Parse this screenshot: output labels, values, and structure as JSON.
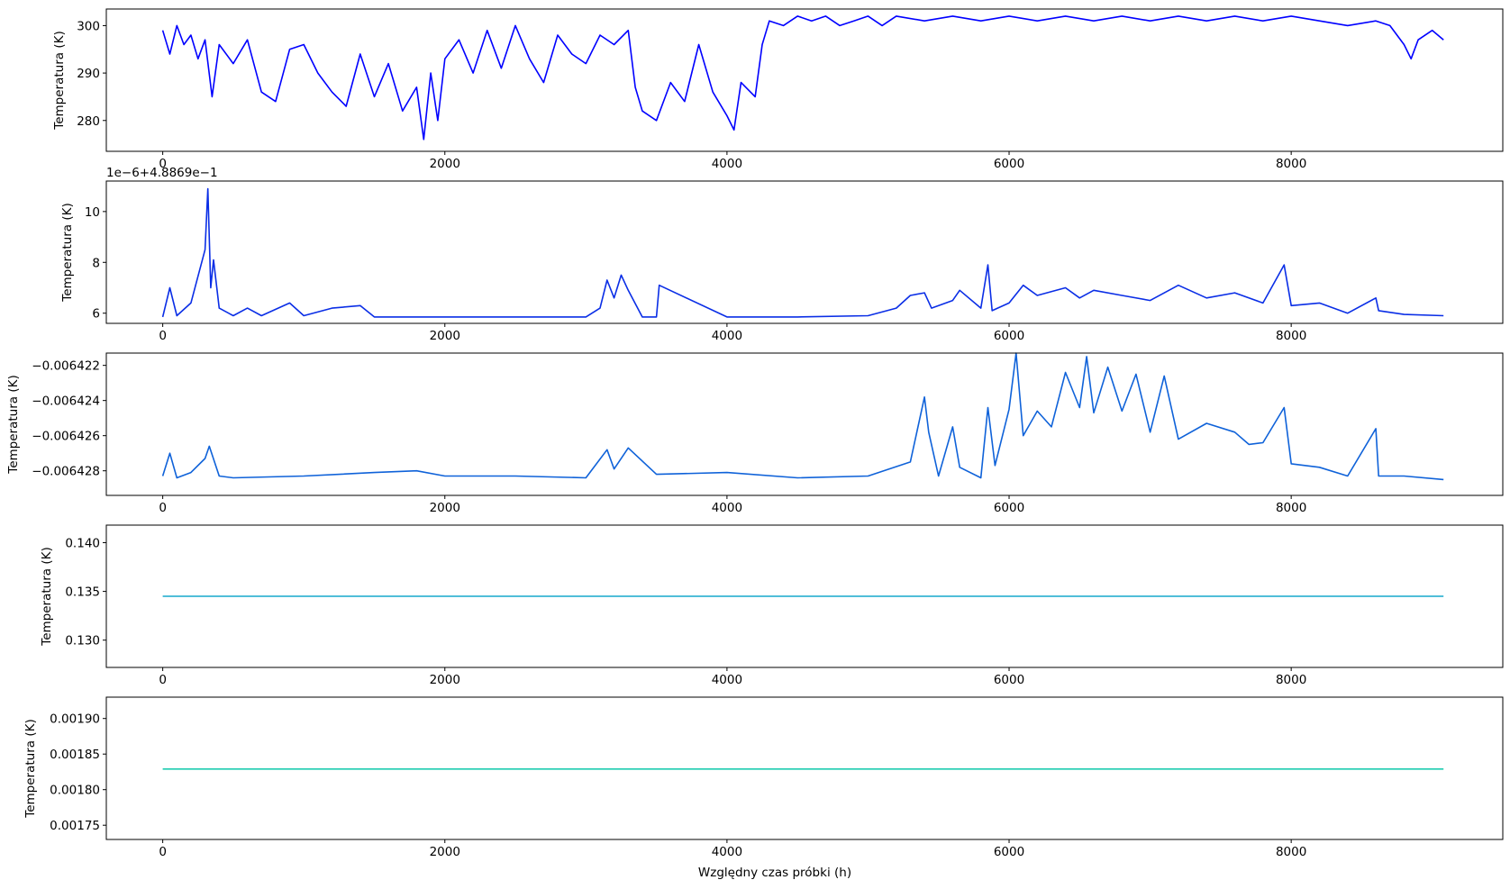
{
  "chart_data": [
    {
      "type": "line",
      "ylabel": "Temperatura (K)",
      "offset_text": "",
      "xlim": [
        -400,
        9500
      ],
      "ylim": [
        273.5,
        303.5
      ],
      "xticks": [
        0,
        2000,
        4000,
        6000,
        8000
      ],
      "yticks": [
        280,
        290,
        300
      ],
      "ytick_labels": [
        "280",
        "290",
        "300"
      ],
      "color": "#0000ff",
      "series": [
        {
          "x": [
            0,
            50,
            100,
            150,
            200,
            250,
            300,
            350,
            400,
            500,
            600,
            700,
            800,
            900,
            1000,
            1100,
            1200,
            1300,
            1400,
            1500,
            1600,
            1700,
            1800,
            1850,
            1900,
            1950,
            2000,
            2100,
            2200,
            2300,
            2400,
            2500,
            2600,
            2700,
            2800,
            2900,
            3000,
            3100,
            3200,
            3300,
            3350,
            3400,
            3500,
            3600,
            3700,
            3800,
            3900,
            4000,
            4050,
            4100,
            4200,
            4250,
            4300,
            4400,
            4500,
            4600,
            4700,
            4800,
            4900,
            5000,
            5100,
            5200,
            5400,
            5600,
            5800,
            6000,
            6200,
            6400,
            6600,
            6800,
            7000,
            7200,
            7400,
            7600,
            7800,
            8000,
            8200,
            8400,
            8600,
            8700,
            8800,
            8850,
            8900,
            9000,
            9080
          ],
          "y": [
            299,
            294,
            300,
            296,
            298,
            293,
            297,
            285,
            296,
            292,
            297,
            286,
            284,
            295,
            296,
            290,
            286,
            283,
            294,
            285,
            292,
            282,
            287,
            276,
            290,
            280,
            293,
            297,
            290,
            299,
            291,
            300,
            293,
            288,
            298,
            294,
            292,
            298,
            296,
            299,
            287,
            282,
            280,
            288,
            284,
            296,
            286,
            281,
            278,
            288,
            285,
            296,
            301,
            300,
            302,
            301,
            302,
            300,
            301,
            302,
            300,
            302,
            301,
            302,
            301,
            302,
            301,
            302,
            301,
            302,
            301,
            302,
            301,
            302,
            301,
            302,
            301,
            300,
            301,
            300,
            296,
            293,
            297,
            299,
            297
          ]
        }
      ]
    },
    {
      "type": "line",
      "ylabel": "Temperatura (K)",
      "offset_text": "1e−6+4.8869e−1",
      "xlim": [
        -400,
        9500
      ],
      "ylim": [
        5.6,
        11.2
      ],
      "xticks": [
        0,
        2000,
        4000,
        6000,
        8000
      ],
      "yticks": [
        6,
        8,
        10
      ],
      "ytick_labels": [
        "6",
        "8",
        "10"
      ],
      "color": "#0a2ee6",
      "series": [
        {
          "x": [
            0,
            50,
            100,
            200,
            300,
            320,
            340,
            360,
            400,
            500,
            600,
            700,
            900,
            1000,
            1200,
            1400,
            1500,
            2000,
            2500,
            3000,
            3100,
            3150,
            3200,
            3250,
            3300,
            3400,
            3500,
            3520,
            4000,
            4500,
            5000,
            5200,
            5300,
            5400,
            5450,
            5600,
            5650,
            5800,
            5850,
            5880,
            6000,
            6100,
            6200,
            6400,
            6500,
            6600,
            6800,
            7000,
            7200,
            7400,
            7600,
            7800,
            7950,
            8000,
            8200,
            8400,
            8600,
            8620,
            8800,
            9080
          ],
          "y": [
            5.85,
            7.0,
            5.9,
            6.4,
            8.5,
            10.9,
            7.0,
            8.1,
            6.2,
            5.9,
            6.2,
            5.9,
            6.4,
            5.9,
            6.2,
            6.3,
            5.85,
            5.85,
            5.85,
            5.85,
            6.2,
            7.3,
            6.6,
            7.5,
            6.9,
            5.85,
            5.85,
            7.1,
            5.85,
            5.85,
            5.9,
            6.2,
            6.7,
            6.8,
            6.2,
            6.5,
            6.9,
            6.2,
            7.9,
            6.1,
            6.4,
            7.1,
            6.7,
            7.0,
            6.6,
            6.9,
            6.7,
            6.5,
            7.1,
            6.6,
            6.8,
            6.4,
            7.9,
            6.3,
            6.4,
            6.0,
            6.6,
            6.1,
            5.95,
            5.9
          ]
        }
      ]
    },
    {
      "type": "line",
      "ylabel": "Temperatura (K)",
      "offset_text": "",
      "xlim": [
        -400,
        9500
      ],
      "ylim": [
        -0.0064294,
        -0.0064213
      ],
      "xticks": [
        0,
        2000,
        4000,
        6000,
        8000
      ],
      "yticks": [
        -0.006422,
        -0.006424,
        -0.006426,
        -0.006428
      ],
      "ytick_labels": [
        "−0.006422",
        "−0.006424",
        "−0.006426",
        "−0.006428"
      ],
      "color": "#0f62d9",
      "series": [
        {
          "x": [
            0,
            50,
            100,
            200,
            300,
            330,
            400,
            500,
            1000,
            1500,
            1800,
            2000,
            2500,
            3000,
            3150,
            3200,
            3300,
            3500,
            4000,
            4500,
            5000,
            5300,
            5400,
            5430,
            5500,
            5600,
            5650,
            5800,
            5850,
            5900,
            6000,
            6050,
            6100,
            6200,
            6300,
            6400,
            6500,
            6550,
            6600,
            6700,
            6800,
            6900,
            7000,
            7100,
            7200,
            7400,
            7600,
            7700,
            7800,
            7950,
            8000,
            8200,
            8400,
            8600,
            8620,
            8800,
            9080
          ],
          "y": [
            -0.0064283,
            -0.006427,
            -0.0064284,
            -0.0064281,
            -0.0064273,
            -0.0064266,
            -0.0064283,
            -0.0064284,
            -0.0064283,
            -0.0064281,
            -0.006428,
            -0.0064283,
            -0.0064283,
            -0.0064284,
            -0.0064268,
            -0.0064279,
            -0.0064267,
            -0.0064282,
            -0.0064281,
            -0.0064284,
            -0.0064283,
            -0.0064275,
            -0.0064238,
            -0.0064258,
            -0.0064283,
            -0.0064255,
            -0.0064278,
            -0.0064284,
            -0.0064244,
            -0.0064277,
            -0.0064245,
            -0.0064213,
            -0.006426,
            -0.0064246,
            -0.0064255,
            -0.0064224,
            -0.0064244,
            -0.0064215,
            -0.0064247,
            -0.0064221,
            -0.0064246,
            -0.0064225,
            -0.0064258,
            -0.0064226,
            -0.0064262,
            -0.0064253,
            -0.0064258,
            -0.0064265,
            -0.0064264,
            -0.0064244,
            -0.0064276,
            -0.0064278,
            -0.0064283,
            -0.0064256,
            -0.0064283,
            -0.0064283,
            -0.0064285
          ]
        }
      ]
    },
    {
      "type": "line",
      "ylabel": "Temperatura (K)",
      "offset_text": "",
      "xlim": [
        -400,
        9500
      ],
      "ylim": [
        0.1272,
        0.1418
      ],
      "xticks": [
        0,
        2000,
        4000,
        6000,
        8000
      ],
      "yticks": [
        0.13,
        0.135,
        0.14
      ],
      "ytick_labels": [
        "0.130",
        "0.135",
        "0.140"
      ],
      "color": "#17a9cc",
      "series": [
        {
          "x": [
            0,
            9080
          ],
          "y": [
            0.1345,
            0.1345
          ]
        }
      ]
    },
    {
      "type": "line",
      "ylabel": "Temperatura (K)",
      "offset_text": "",
      "xlabel": "Względny czas próbki (h)",
      "xlim": [
        -400,
        9500
      ],
      "ylim": [
        0.00173,
        0.00193
      ],
      "xticks": [
        0,
        2000,
        4000,
        6000,
        8000
      ],
      "yticks": [
        0.00175,
        0.0018,
        0.00185,
        0.0019
      ],
      "ytick_labels": [
        "0.00175",
        "0.00180",
        "0.00185",
        "0.00190"
      ],
      "color": "#1fccb0",
      "series": [
        {
          "x": [
            0,
            9080
          ],
          "y": [
            0.001829,
            0.001829
          ]
        }
      ]
    }
  ]
}
